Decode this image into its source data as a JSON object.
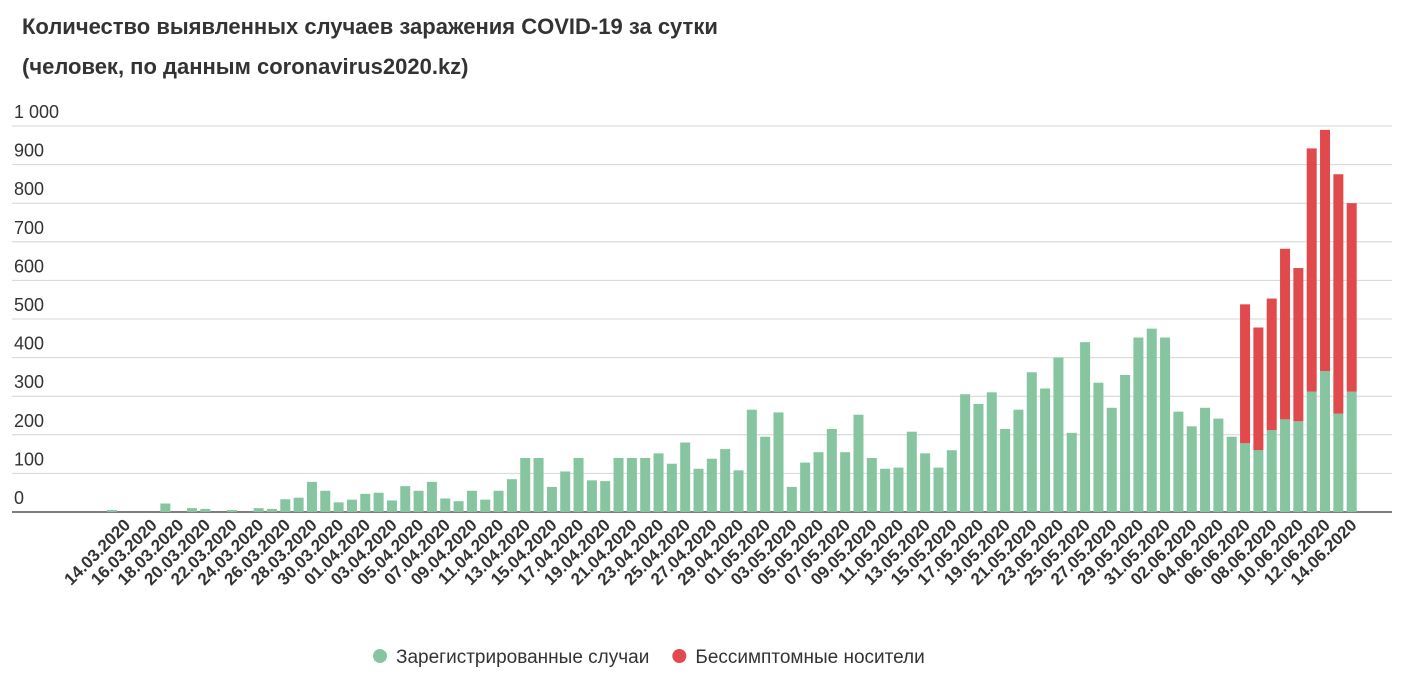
{
  "chart_data": {
    "type": "stacked_bar",
    "title": "Количество выявленных случаев заражения COVID-19 за сутки",
    "subtitle": "(человек, по данным coronavirus2020.kz)",
    "categories": [
      null,
      "14.03.2020",
      null,
      "16.03.2020",
      null,
      "18.03.2020",
      null,
      "20.03.2020",
      null,
      "22.03.2020",
      null,
      "24.03.2020",
      null,
      "26.03.2020",
      null,
      "28.03.2020",
      null,
      "30.03.2020",
      null,
      "01.04.2020",
      null,
      "03.04.2020",
      null,
      "05.04.2020",
      null,
      "07.04.2020",
      null,
      "09.04.2020",
      null,
      "11.04.2020",
      null,
      "13.04.2020",
      null,
      "15.04.2020",
      null,
      "17.04.2020",
      null,
      "19.04.2020",
      null,
      "21.04.2020",
      null,
      "23.04.2020",
      null,
      "25.04.2020",
      null,
      "27.04.2020",
      null,
      "29.04.2020",
      null,
      "01.05.2020",
      null,
      "03.05.2020",
      null,
      "05.05.2020",
      null,
      "07.05.2020",
      null,
      "09.05.2020",
      null,
      "11.05.2020",
      null,
      "13.05.2020",
      null,
      "15.05.2020",
      null,
      "17.05.2020",
      null,
      "19.05.2020",
      null,
      "21.05.2020",
      null,
      "23.05.2020",
      null,
      "25.05.2020",
      null,
      "27.05.2020",
      null,
      "29.05.2020",
      null,
      "31.05.2020",
      null,
      "02.06.2020",
      null,
      "04.06.2020",
      null,
      "06.06.2020",
      null,
      "08.06.2020",
      null,
      "10.06.2020",
      null,
      "12.06.2020",
      null,
      "14.06.2020"
    ],
    "series": [
      {
        "name": "Зарегистрированные случаи",
        "color": "#86c5a0",
        "values": [
          5,
          0,
          0,
          0,
          22,
          0,
          10,
          8,
          0,
          5,
          0,
          10,
          8,
          33,
          37,
          78,
          55,
          25,
          32,
          47,
          50,
          30,
          67,
          55,
          78,
          35,
          28,
          55,
          32,
          55,
          85,
          140,
          140,
          65,
          105,
          140,
          82,
          80,
          140,
          140,
          140,
          152,
          125,
          180,
          112,
          138,
          163,
          108,
          265,
          195,
          258,
          65,
          128,
          155,
          215,
          155,
          252,
          140,
          112,
          115,
          208,
          152,
          115,
          160,
          305,
          280,
          310,
          215,
          265,
          362,
          320,
          400,
          205,
          440,
          335,
          270,
          355,
          452,
          475,
          452,
          260,
          222,
          270,
          242,
          195,
          178,
          160,
          212,
          240,
          235,
          312,
          365,
          255,
          312
        ]
      },
      {
        "name": "Бессимптомные носители",
        "color": "#e04a4c",
        "values": [
          null,
          null,
          null,
          null,
          null,
          null,
          null,
          null,
          null,
          null,
          null,
          null,
          null,
          null,
          null,
          null,
          null,
          null,
          null,
          null,
          null,
          null,
          null,
          null,
          null,
          null,
          null,
          null,
          null,
          null,
          null,
          null,
          null,
          null,
          null,
          null,
          null,
          null,
          null,
          null,
          null,
          null,
          null,
          null,
          null,
          null,
          null,
          null,
          null,
          null,
          null,
          null,
          null,
          null,
          null,
          null,
          null,
          null,
          null,
          null,
          null,
          null,
          null,
          null,
          null,
          null,
          null,
          null,
          null,
          null,
          null,
          null,
          null,
          null,
          null,
          null,
          null,
          null,
          null,
          null,
          null,
          null,
          null,
          null,
          null,
          360,
          318,
          341,
          442,
          397,
          630,
          625,
          620,
          488
        ]
      }
    ],
    "ylim": [
      0,
      1000
    ],
    "yticks": [
      0,
      100,
      200,
      300,
      400,
      500,
      600,
      700,
      800,
      900,
      {
        "value": 1000,
        "label": "1 000"
      }
    ],
    "grid": true,
    "legend": "bottom"
  }
}
